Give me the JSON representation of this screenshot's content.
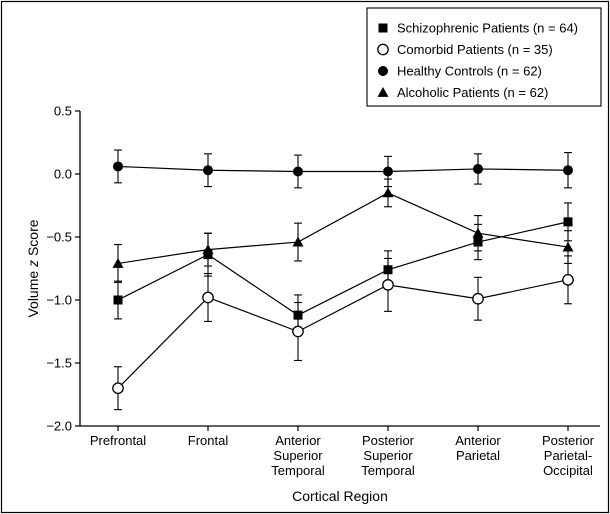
{
  "chart_data": {
    "type": "line",
    "title": "",
    "xlabel": "Cortical Region",
    "ylabel": "Volume z Score",
    "ylim": [
      -2.0,
      0.5
    ],
    "yticks": [
      0.5,
      0.0,
      -0.5,
      -1.0,
      -1.5,
      -2.0
    ],
    "ytick_labels": [
      "0.5",
      "0.0",
      "−0.5",
      "−1.0",
      "−1.5",
      "−2.0"
    ],
    "grid": false,
    "legend_position": "top-right",
    "categories": [
      [
        "Prefrontal"
      ],
      [
        "Frontal"
      ],
      [
        "Anterior",
        "Superior",
        "Temporal"
      ],
      [
        "Posterior",
        "Superior",
        "Temporal"
      ],
      [
        "Anterior",
        "Parietal"
      ],
      [
        "Posterior",
        "Parietal-",
        "Occipital"
      ]
    ],
    "series": [
      {
        "name": "Schizophrenic Patients (n = 64)",
        "marker": "square",
        "values": [
          -1.0,
          -0.64,
          -1.12,
          -0.76,
          -0.54,
          -0.38
        ],
        "errors": [
          0.15,
          0.17,
          0.16,
          0.15,
          0.14,
          0.15
        ]
      },
      {
        "name": "Comorbid Patients (n = 35)",
        "marker": "open-circle",
        "values": [
          -1.7,
          -0.98,
          -1.25,
          -0.88,
          -0.99,
          -0.84
        ],
        "errors": [
          0.17,
          0.19,
          0.23,
          0.21,
          0.17,
          0.19
        ]
      },
      {
        "name": "Healthy Controls (n = 62)",
        "marker": "circle",
        "values": [
          0.06,
          0.03,
          0.02,
          0.02,
          0.04,
          0.03
        ],
        "errors": [
          0.13,
          0.13,
          0.13,
          0.12,
          0.12,
          0.14
        ]
      },
      {
        "name": "Alcoholic Patients (n = 62)",
        "marker": "triangle",
        "values": [
          -0.71,
          -0.6,
          -0.54,
          -0.15,
          -0.47,
          -0.58
        ],
        "errors": [
          0.15,
          0.13,
          0.15,
          0.11,
          0.14,
          0.13
        ]
      }
    ]
  }
}
